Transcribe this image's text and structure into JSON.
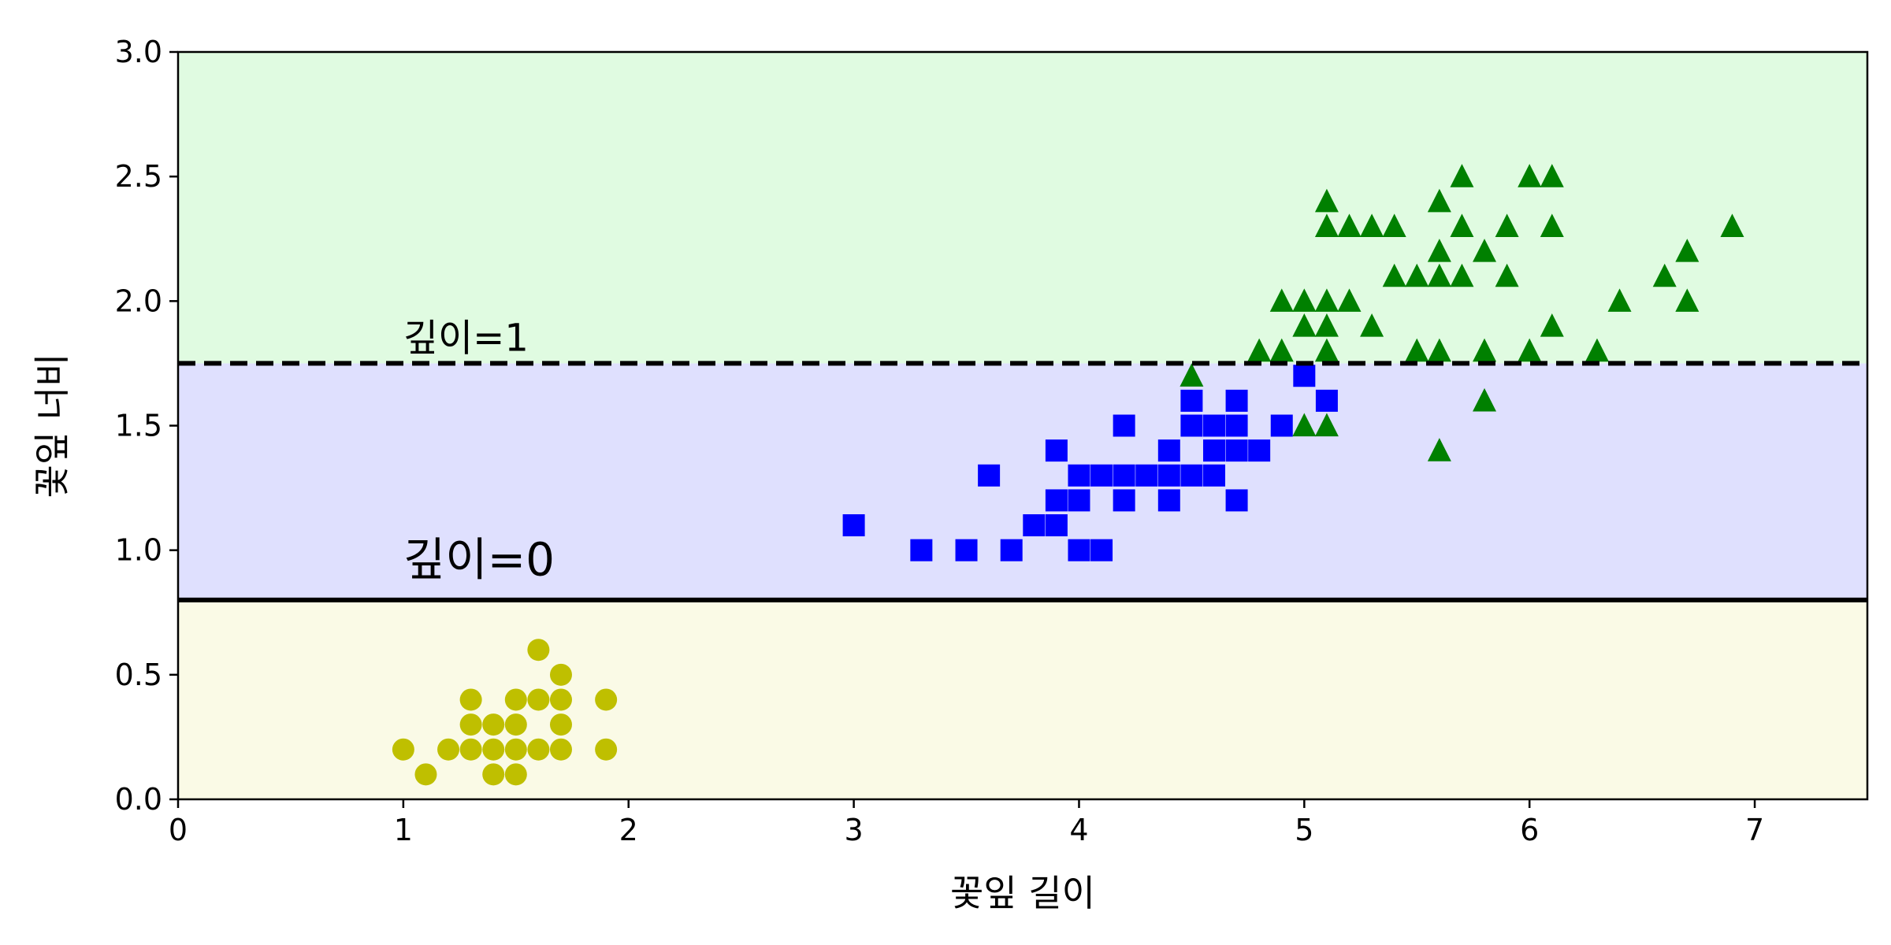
{
  "chart_data": {
    "type": "scatter",
    "title": "",
    "xlabel": "꽃잎 길이",
    "ylabel": "꽃잎 너비",
    "xlim": [
      0,
      7.5
    ],
    "ylim": [
      0,
      3
    ],
    "xticks": [
      0,
      1,
      2,
      3,
      4,
      5,
      6,
      7
    ],
    "xtick_labels": [
      "0",
      "1",
      "2",
      "3",
      "4",
      "5",
      "6",
      "7"
    ],
    "yticks": [
      0,
      0.5,
      1,
      1.5,
      2,
      2.5,
      3
    ],
    "ytick_labels": [
      "0.0",
      "0.5",
      "1.0",
      "1.5",
      "2.0",
      "2.5",
      "3.0"
    ],
    "grid": false,
    "legend": null,
    "regions": [
      {
        "y_from": 0,
        "y_to": 0.8,
        "color": "#fafae6"
      },
      {
        "y_from": 0.8,
        "y_to": 1.75,
        "color": "#dfe0fe"
      },
      {
        "y_from": 1.75,
        "y_to": 3.0,
        "color": "#e0fbe1"
      }
    ],
    "thresholds": [
      {
        "y": 0.8,
        "style": "solid",
        "color": "#000000"
      },
      {
        "y": 1.75,
        "style": "dashed",
        "color": "#000000"
      }
    ],
    "annotations": [
      {
        "text": "깊이=0",
        "x": 1.0,
        "y": 0.9,
        "size": "large"
      },
      {
        "text": "깊이=1",
        "x": 1.0,
        "y": 1.8,
        "size": "medium"
      }
    ],
    "series": [
      {
        "marker": "circle",
        "color": "#bfbf00",
        "points": [
          [
            1.0,
            0.2
          ],
          [
            1.1,
            0.1
          ],
          [
            1.2,
            0.2
          ],
          [
            1.3,
            0.4
          ],
          [
            1.3,
            0.3
          ],
          [
            1.3,
            0.2
          ],
          [
            1.4,
            0.3
          ],
          [
            1.4,
            0.2
          ],
          [
            1.4,
            0.1
          ],
          [
            1.5,
            0.4
          ],
          [
            1.5,
            0.3
          ],
          [
            1.5,
            0.2
          ],
          [
            1.5,
            0.1
          ],
          [
            1.6,
            0.6
          ],
          [
            1.6,
            0.4
          ],
          [
            1.6,
            0.2
          ],
          [
            1.7,
            0.5
          ],
          [
            1.7,
            0.4
          ],
          [
            1.7,
            0.3
          ],
          [
            1.7,
            0.2
          ],
          [
            1.9,
            0.4
          ],
          [
            1.9,
            0.2
          ]
        ]
      },
      {
        "marker": "square",
        "color": "#0000ff",
        "points": [
          [
            3.0,
            1.1
          ],
          [
            3.3,
            1.0
          ],
          [
            3.5,
            1.0
          ],
          [
            3.6,
            1.3
          ],
          [
            3.7,
            1.0
          ],
          [
            3.8,
            1.1
          ],
          [
            3.9,
            1.1
          ],
          [
            3.9,
            1.2
          ],
          [
            3.9,
            1.4
          ],
          [
            4.0,
            1.0
          ],
          [
            4.0,
            1.2
          ],
          [
            4.0,
            1.3
          ],
          [
            4.1,
            1.0
          ],
          [
            4.1,
            1.3
          ],
          [
            4.2,
            1.2
          ],
          [
            4.2,
            1.3
          ],
          [
            4.2,
            1.5
          ],
          [
            4.3,
            1.3
          ],
          [
            4.4,
            1.2
          ],
          [
            4.4,
            1.3
          ],
          [
            4.4,
            1.4
          ],
          [
            4.5,
            1.3
          ],
          [
            4.5,
            1.5
          ],
          [
            4.5,
            1.6
          ],
          [
            4.6,
            1.3
          ],
          [
            4.6,
            1.4
          ],
          [
            4.6,
            1.5
          ],
          [
            4.7,
            1.2
          ],
          [
            4.7,
            1.4
          ],
          [
            4.7,
            1.5
          ],
          [
            4.7,
            1.6
          ],
          [
            4.8,
            1.4
          ],
          [
            4.9,
            1.5
          ],
          [
            5.0,
            1.7
          ],
          [
            5.1,
            1.6
          ]
        ]
      },
      {
        "marker": "triangle",
        "color": "#008000",
        "points": [
          [
            4.5,
            1.7
          ],
          [
            4.8,
            1.8
          ],
          [
            4.9,
            1.8
          ],
          [
            4.9,
            2.0
          ],
          [
            5.0,
            1.5
          ],
          [
            5.0,
            1.9
          ],
          [
            5.0,
            2.0
          ],
          [
            5.1,
            1.5
          ],
          [
            5.1,
            1.8
          ],
          [
            5.1,
            1.9
          ],
          [
            5.1,
            2.0
          ],
          [
            5.1,
            2.3
          ],
          [
            5.1,
            2.4
          ],
          [
            5.2,
            2.0
          ],
          [
            5.2,
            2.3
          ],
          [
            5.3,
            1.9
          ],
          [
            5.3,
            2.3
          ],
          [
            5.4,
            2.1
          ],
          [
            5.4,
            2.3
          ],
          [
            5.5,
            1.8
          ],
          [
            5.5,
            2.1
          ],
          [
            5.6,
            1.4
          ],
          [
            5.6,
            1.8
          ],
          [
            5.6,
            2.1
          ],
          [
            5.6,
            2.2
          ],
          [
            5.6,
            2.4
          ],
          [
            5.7,
            2.1
          ],
          [
            5.7,
            2.3
          ],
          [
            5.7,
            2.5
          ],
          [
            5.8,
            1.6
          ],
          [
            5.8,
            1.8
          ],
          [
            5.8,
            2.2
          ],
          [
            5.9,
            2.1
          ],
          [
            5.9,
            2.3
          ],
          [
            6.0,
            1.8
          ],
          [
            6.0,
            2.5
          ],
          [
            6.1,
            1.9
          ],
          [
            6.1,
            2.3
          ],
          [
            6.1,
            2.5
          ],
          [
            6.3,
            1.8
          ],
          [
            6.4,
            2.0
          ],
          [
            6.6,
            2.1
          ],
          [
            6.7,
            2.0
          ],
          [
            6.7,
            2.2
          ],
          [
            6.9,
            2.3
          ]
        ]
      }
    ]
  }
}
